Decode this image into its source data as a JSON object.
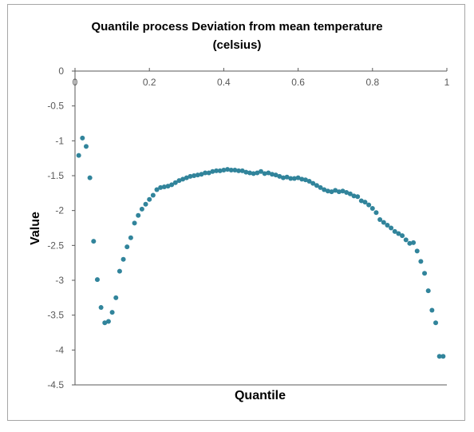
{
  "chart_data": {
    "type": "scatter",
    "title": "Quantile process Deviation from mean temperature",
    "subtitle": "(celsius)",
    "xlabel": "Quantile",
    "ylabel": "Value",
    "xlim": [
      0,
      1
    ],
    "ylim": [
      -4.5,
      0
    ],
    "x_ticks": [
      "0",
      "0.2",
      "0.4",
      "0.6",
      "0.8",
      "1"
    ],
    "y_ticks": [
      "0",
      "-0.5",
      "-1",
      "-1.5",
      "-2",
      "-2.5",
      "-3",
      "-3.5",
      "-4",
      "-4.5"
    ],
    "grid": false,
    "legend": "none",
    "marker_color": "#31849b",
    "x": [
      0.01,
      0.02,
      0.03,
      0.04,
      0.05,
      0.06,
      0.07,
      0.08,
      0.09,
      0.1,
      0.11,
      0.12,
      0.13,
      0.14,
      0.15,
      0.16,
      0.17,
      0.18,
      0.19,
      0.2,
      0.21,
      0.22,
      0.23,
      0.24,
      0.25,
      0.26,
      0.27,
      0.28,
      0.29,
      0.3,
      0.31,
      0.32,
      0.33,
      0.34,
      0.35,
      0.36,
      0.37,
      0.38,
      0.39,
      0.4,
      0.41,
      0.42,
      0.43,
      0.44,
      0.45,
      0.46,
      0.47,
      0.48,
      0.49,
      0.5,
      0.51,
      0.52,
      0.53,
      0.54,
      0.55,
      0.56,
      0.57,
      0.58,
      0.59,
      0.6,
      0.61,
      0.62,
      0.63,
      0.64,
      0.65,
      0.66,
      0.67,
      0.68,
      0.69,
      0.7,
      0.71,
      0.72,
      0.73,
      0.74,
      0.75,
      0.76,
      0.77,
      0.78,
      0.79,
      0.8,
      0.81,
      0.82,
      0.83,
      0.84,
      0.85,
      0.86,
      0.87,
      0.88,
      0.89,
      0.9,
      0.91,
      0.92,
      0.93,
      0.94,
      0.95,
      0.96,
      0.97,
      0.98,
      0.99
    ],
    "y": [
      -1.21,
      -0.96,
      -1.08,
      -1.53,
      -2.44,
      -2.99,
      -3.39,
      -3.61,
      -3.59,
      -3.46,
      -3.25,
      -2.87,
      -2.7,
      -2.52,
      -2.39,
      -2.18,
      -2.07,
      -1.98,
      -1.91,
      -1.84,
      -1.78,
      -1.7,
      -1.67,
      -1.66,
      -1.65,
      -1.63,
      -1.6,
      -1.57,
      -1.55,
      -1.53,
      -1.51,
      -1.5,
      -1.49,
      -1.48,
      -1.46,
      -1.46,
      -1.44,
      -1.43,
      -1.43,
      -1.42,
      -1.41,
      -1.42,
      -1.42,
      -1.43,
      -1.43,
      -1.45,
      -1.46,
      -1.47,
      -1.46,
      -1.44,
      -1.47,
      -1.46,
      -1.48,
      -1.49,
      -1.51,
      -1.53,
      -1.52,
      -1.54,
      -1.54,
      -1.53,
      -1.55,
      -1.56,
      -1.58,
      -1.61,
      -1.64,
      -1.67,
      -1.7,
      -1.72,
      -1.73,
      -1.71,
      -1.73,
      -1.72,
      -1.74,
      -1.76,
      -1.79,
      -1.8,
      -1.86,
      -1.88,
      -1.92,
      -1.97,
      -2.03,
      -2.13,
      -2.17,
      -2.21,
      -2.25,
      -2.3,
      -2.33,
      -2.36,
      -2.42,
      -2.47,
      -2.46,
      -2.58,
      -2.73,
      -2.9,
      -3.15,
      -3.43,
      -3.61,
      -4.09,
      -4.09
    ]
  }
}
